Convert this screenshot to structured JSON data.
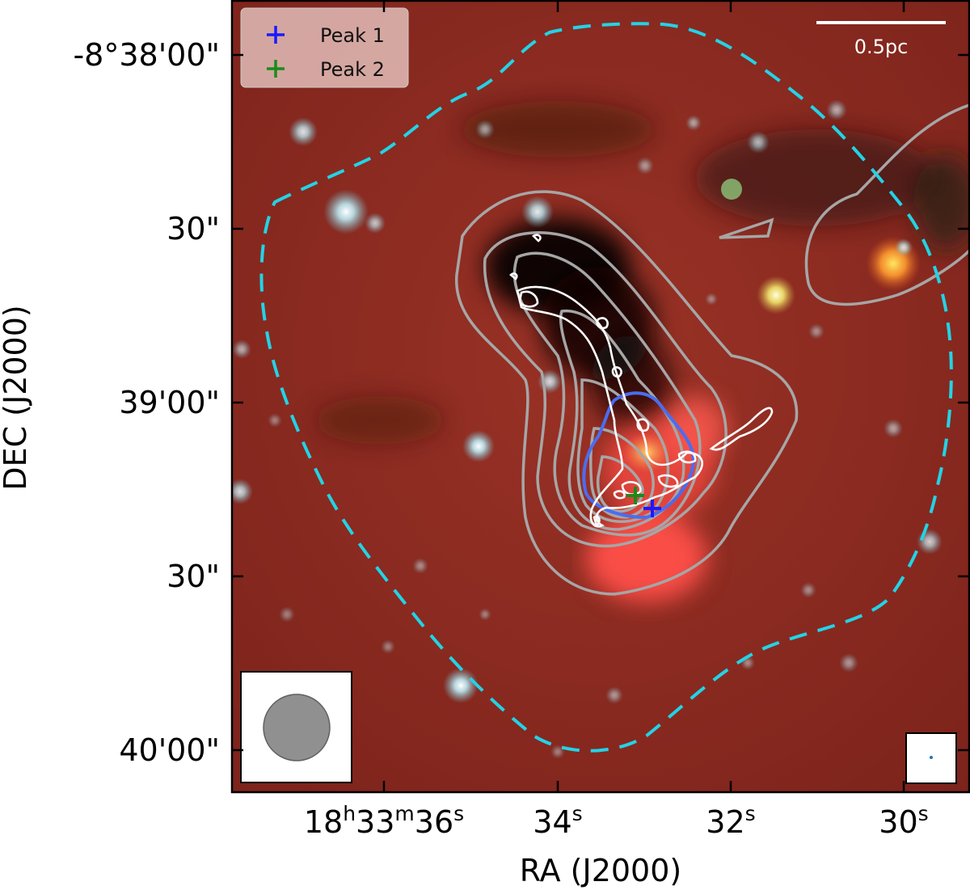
{
  "axes": {
    "xlabel": "RA (J2000)",
    "ylabel": "DEC (J2000)",
    "x_ticks": [
      {
        "base": "18",
        "h": "h",
        "mid": "33",
        "m": "m",
        "rest": "36",
        "s": "s"
      },
      {
        "base": "",
        "h": "",
        "mid": "",
        "m": "",
        "rest": "34",
        "s": "s"
      },
      {
        "base": "",
        "h": "",
        "mid": "",
        "m": "",
        "rest": "32",
        "s": "s"
      },
      {
        "base": "",
        "h": "",
        "mid": "",
        "m": "",
        "rest": "30",
        "s": "s"
      }
    ],
    "y_ticks": [
      "-8°38'00\"",
      "30\"",
      "39'00\"",
      "30\"",
      "40'00\""
    ]
  },
  "legend": {
    "position": "top-left",
    "items": [
      {
        "label": "Peak 1",
        "color": "#1a1aff"
      },
      {
        "label": "Peak 2",
        "color": "#1a8c1a"
      }
    ]
  },
  "scalebar": {
    "label": "0.5pc",
    "position": "top-right"
  },
  "colors": {
    "dashed_boundary": "#22d3e6",
    "gray_contours": "#a6a6a6",
    "white_contours": "#ffffff",
    "blue_contour": "#4a6df0",
    "background": "#8e2a20"
  },
  "markers": [
    {
      "name": "peak-1",
      "color": "#1a1aff"
    },
    {
      "name": "peak-2",
      "color": "#1a8c1a"
    }
  ]
}
